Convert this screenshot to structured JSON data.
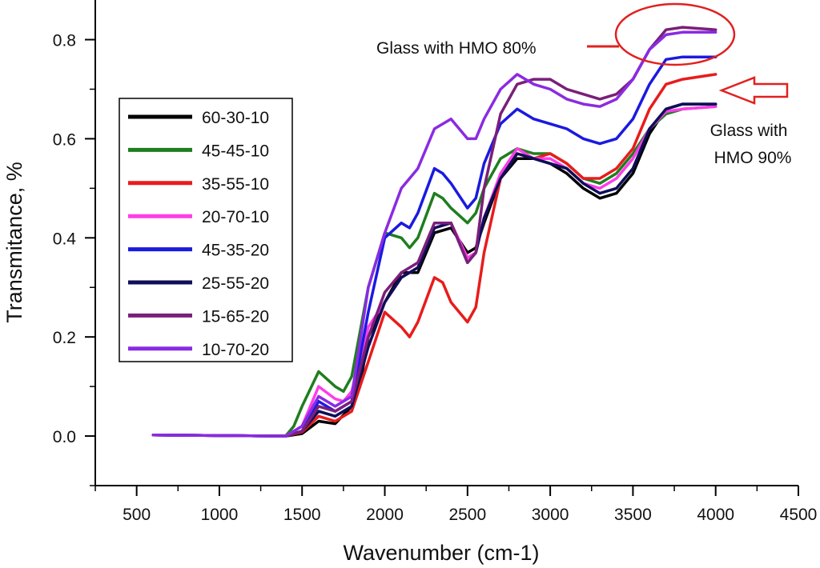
{
  "chart_data": {
    "type": "line",
    "xlabel": "Wavenumber (cm-1)",
    "ylabel": "Transmitance, %",
    "xlim": [
      250,
      4500
    ],
    "ylim": [
      -0.1,
      0.88
    ],
    "x_ticks": [
      500,
      1000,
      1500,
      2000,
      2500,
      3000,
      3500,
      4000,
      4500
    ],
    "x_tick_labels": [
      "500",
      "1000",
      "1500",
      "2000",
      "2500",
      "3000",
      "3500",
      "4000",
      "4500"
    ],
    "y_ticks": [
      0.0,
      0.2,
      0.4,
      0.6,
      0.8
    ],
    "y_tick_labels": [
      "0.0",
      "0.2",
      "0.4",
      "0.6",
      "0.8"
    ],
    "grid": false,
    "legend_position": "left",
    "annotations": [
      {
        "text": "Glass with HMO 80%"
      },
      {
        "lines": [
          "Glass with",
          "HMO 90%"
        ]
      }
    ],
    "series": [
      {
        "name": "60-30-10",
        "color": "#000000",
        "points": [
          [
            600,
            0.002
          ],
          [
            1400,
            0.0
          ],
          [
            1500,
            0.005
          ],
          [
            1600,
            0.03
          ],
          [
            1700,
            0.025
          ],
          [
            1800,
            0.06
          ],
          [
            1850,
            0.1
          ],
          [
            1900,
            0.2
          ],
          [
            2000,
            0.27
          ],
          [
            2100,
            0.33
          ],
          [
            2200,
            0.33
          ],
          [
            2300,
            0.41
          ],
          [
            2400,
            0.42
          ],
          [
            2500,
            0.37
          ],
          [
            2550,
            0.38
          ],
          [
            2600,
            0.43
          ],
          [
            2700,
            0.52
          ],
          [
            2800,
            0.56
          ],
          [
            2900,
            0.56
          ],
          [
            3000,
            0.55
          ],
          [
            3100,
            0.53
          ],
          [
            3200,
            0.5
          ],
          [
            3300,
            0.48
          ],
          [
            3400,
            0.49
          ],
          [
            3500,
            0.53
          ],
          [
            3600,
            0.61
          ],
          [
            3700,
            0.66
          ],
          [
            3800,
            0.67
          ],
          [
            4000,
            0.67
          ]
        ]
      },
      {
        "name": "45-45-10",
        "color": "#1e7e1e",
        "points": [
          [
            600,
            0.002
          ],
          [
            1400,
            0.0
          ],
          [
            1450,
            0.02
          ],
          [
            1500,
            0.06
          ],
          [
            1600,
            0.13
          ],
          [
            1700,
            0.1
          ],
          [
            1750,
            0.09
          ],
          [
            1800,
            0.12
          ],
          [
            1900,
            0.3
          ],
          [
            2000,
            0.41
          ],
          [
            2100,
            0.4
          ],
          [
            2150,
            0.38
          ],
          [
            2200,
            0.4
          ],
          [
            2300,
            0.49
          ],
          [
            2350,
            0.48
          ],
          [
            2400,
            0.46
          ],
          [
            2500,
            0.43
          ],
          [
            2550,
            0.45
          ],
          [
            2600,
            0.5
          ],
          [
            2700,
            0.56
          ],
          [
            2800,
            0.58
          ],
          [
            2900,
            0.57
          ],
          [
            3000,
            0.57
          ],
          [
            3100,
            0.55
          ],
          [
            3200,
            0.52
          ],
          [
            3300,
            0.51
          ],
          [
            3400,
            0.53
          ],
          [
            3500,
            0.57
          ],
          [
            3600,
            0.62
          ],
          [
            3700,
            0.65
          ],
          [
            3800,
            0.66
          ],
          [
            4000,
            0.665
          ]
        ]
      },
      {
        "name": "35-55-10",
        "color": "#e81c1c",
        "points": [
          [
            600,
            0.002
          ],
          [
            1400,
            0.0
          ],
          [
            1500,
            0.008
          ],
          [
            1600,
            0.04
          ],
          [
            1700,
            0.03
          ],
          [
            1800,
            0.05
          ],
          [
            1900,
            0.15
          ],
          [
            2000,
            0.25
          ],
          [
            2100,
            0.22
          ],
          [
            2150,
            0.2
          ],
          [
            2200,
            0.23
          ],
          [
            2300,
            0.32
          ],
          [
            2350,
            0.31
          ],
          [
            2400,
            0.27
          ],
          [
            2500,
            0.23
          ],
          [
            2550,
            0.26
          ],
          [
            2600,
            0.37
          ],
          [
            2700,
            0.52
          ],
          [
            2800,
            0.57
          ],
          [
            2900,
            0.56
          ],
          [
            3000,
            0.57
          ],
          [
            3100,
            0.55
          ],
          [
            3200,
            0.52
          ],
          [
            3300,
            0.52
          ],
          [
            3400,
            0.54
          ],
          [
            3500,
            0.58
          ],
          [
            3600,
            0.66
          ],
          [
            3700,
            0.71
          ],
          [
            3800,
            0.72
          ],
          [
            4000,
            0.73
          ]
        ]
      },
      {
        "name": "20-70-10",
        "color": "#ff3de8",
        "points": [
          [
            600,
            0.002
          ],
          [
            1400,
            0.0
          ],
          [
            1500,
            0.02
          ],
          [
            1600,
            0.1
          ],
          [
            1700,
            0.075
          ],
          [
            1750,
            0.07
          ],
          [
            1800,
            0.09
          ],
          [
            1900,
            0.22
          ],
          [
            2000,
            0.27
          ],
          [
            2100,
            0.32
          ],
          [
            2200,
            0.34
          ],
          [
            2300,
            0.42
          ],
          [
            2400,
            0.43
          ],
          [
            2500,
            0.36
          ],
          [
            2550,
            0.37
          ],
          [
            2600,
            0.44
          ],
          [
            2700,
            0.53
          ],
          [
            2800,
            0.58
          ],
          [
            2900,
            0.56
          ],
          [
            3000,
            0.56
          ],
          [
            3100,
            0.54
          ],
          [
            3200,
            0.51
          ],
          [
            3300,
            0.5
          ],
          [
            3400,
            0.52
          ],
          [
            3500,
            0.56
          ],
          [
            3600,
            0.62
          ],
          [
            3700,
            0.655
          ],
          [
            3800,
            0.66
          ],
          [
            4000,
            0.665
          ]
        ]
      },
      {
        "name": "45-35-20",
        "color": "#1a1ae0",
        "points": [
          [
            600,
            0.002
          ],
          [
            1400,
            0.0
          ],
          [
            1500,
            0.01
          ],
          [
            1600,
            0.07
          ],
          [
            1700,
            0.05
          ],
          [
            1800,
            0.07
          ],
          [
            1900,
            0.25
          ],
          [
            2000,
            0.4
          ],
          [
            2100,
            0.43
          ],
          [
            2150,
            0.42
          ],
          [
            2200,
            0.45
          ],
          [
            2300,
            0.54
          ],
          [
            2350,
            0.53
          ],
          [
            2400,
            0.51
          ],
          [
            2500,
            0.46
          ],
          [
            2550,
            0.48
          ],
          [
            2600,
            0.55
          ],
          [
            2700,
            0.63
          ],
          [
            2800,
            0.66
          ],
          [
            2900,
            0.64
          ],
          [
            3000,
            0.63
          ],
          [
            3100,
            0.62
          ],
          [
            3200,
            0.6
          ],
          [
            3300,
            0.59
          ],
          [
            3400,
            0.6
          ],
          [
            3500,
            0.64
          ],
          [
            3600,
            0.71
          ],
          [
            3700,
            0.76
          ],
          [
            3800,
            0.765
          ],
          [
            4000,
            0.765
          ]
        ]
      },
      {
        "name": "25-55-20",
        "color": "#0e0e5a",
        "points": [
          [
            600,
            0.002
          ],
          [
            1400,
            0.0
          ],
          [
            1500,
            0.01
          ],
          [
            1600,
            0.05
          ],
          [
            1700,
            0.04
          ],
          [
            1800,
            0.06
          ],
          [
            1900,
            0.18
          ],
          [
            2000,
            0.27
          ],
          [
            2100,
            0.32
          ],
          [
            2200,
            0.34
          ],
          [
            2300,
            0.42
          ],
          [
            2400,
            0.43
          ],
          [
            2500,
            0.35
          ],
          [
            2550,
            0.37
          ],
          [
            2600,
            0.44
          ],
          [
            2700,
            0.52
          ],
          [
            2800,
            0.57
          ],
          [
            2900,
            0.56
          ],
          [
            3000,
            0.55
          ],
          [
            3100,
            0.54
          ],
          [
            3200,
            0.51
          ],
          [
            3300,
            0.49
          ],
          [
            3400,
            0.5
          ],
          [
            3500,
            0.54
          ],
          [
            3600,
            0.62
          ],
          [
            3700,
            0.66
          ],
          [
            3800,
            0.67
          ],
          [
            4000,
            0.67
          ]
        ]
      },
      {
        "name": "15-65-20",
        "color": "#7a1f7a",
        "points": [
          [
            600,
            0.002
          ],
          [
            1400,
            0.0
          ],
          [
            1500,
            0.01
          ],
          [
            1600,
            0.06
          ],
          [
            1700,
            0.05
          ],
          [
            1800,
            0.07
          ],
          [
            1900,
            0.2
          ],
          [
            2000,
            0.29
          ],
          [
            2100,
            0.33
          ],
          [
            2200,
            0.35
          ],
          [
            2300,
            0.43
          ],
          [
            2400,
            0.43
          ],
          [
            2500,
            0.35
          ],
          [
            2550,
            0.37
          ],
          [
            2600,
            0.5
          ],
          [
            2700,
            0.65
          ],
          [
            2800,
            0.71
          ],
          [
            2900,
            0.72
          ],
          [
            3000,
            0.72
          ],
          [
            3100,
            0.7
          ],
          [
            3200,
            0.69
          ],
          [
            3300,
            0.68
          ],
          [
            3400,
            0.69
          ],
          [
            3500,
            0.72
          ],
          [
            3600,
            0.78
          ],
          [
            3700,
            0.82
          ],
          [
            3800,
            0.825
          ],
          [
            4000,
            0.82
          ]
        ]
      },
      {
        "name": "10-70-20",
        "color": "#8a2be2",
        "points": [
          [
            600,
            0.002
          ],
          [
            1400,
            0.0
          ],
          [
            1500,
            0.02
          ],
          [
            1600,
            0.08
          ],
          [
            1700,
            0.06
          ],
          [
            1800,
            0.08
          ],
          [
            1900,
            0.3
          ],
          [
            2000,
            0.41
          ],
          [
            2100,
            0.5
          ],
          [
            2200,
            0.54
          ],
          [
            2300,
            0.62
          ],
          [
            2400,
            0.64
          ],
          [
            2500,
            0.6
          ],
          [
            2550,
            0.6
          ],
          [
            2600,
            0.64
          ],
          [
            2700,
            0.7
          ],
          [
            2800,
            0.73
          ],
          [
            2900,
            0.71
          ],
          [
            3000,
            0.7
          ],
          [
            3100,
            0.68
          ],
          [
            3200,
            0.67
          ],
          [
            3300,
            0.665
          ],
          [
            3400,
            0.68
          ],
          [
            3500,
            0.72
          ],
          [
            3600,
            0.78
          ],
          [
            3700,
            0.81
          ],
          [
            3800,
            0.815
          ],
          [
            4000,
            0.815
          ]
        ]
      }
    ]
  }
}
